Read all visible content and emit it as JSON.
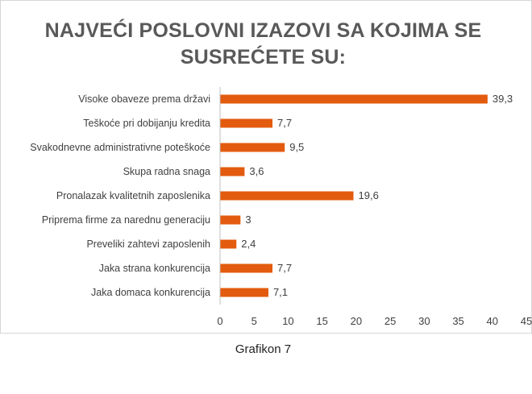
{
  "chart_data": {
    "type": "bar",
    "orientation": "horizontal",
    "title_lines": [
      "NAJVEĆI POSLOVNI IZAZOVI SA KOJIMA SE",
      "SUSREĆETE SU:"
    ],
    "categories": [
      "Visoke obaveze prema državi",
      "Teškoće pri dobijanju kredita",
      "Svakodnevne administrativne poteškoće",
      "Skupa radna snaga",
      "Pronalazak kvalitetnih zaposlenika",
      "Priprema firme za narednu generaciju",
      "Preveliki zahtevi zaposlenih",
      "Jaka strana konkurencija",
      "Jaka domaca konkurencija"
    ],
    "values": [
      39.3,
      7.7,
      9.5,
      3.6,
      19.6,
      3,
      2.4,
      7.7,
      7.1
    ],
    "value_labels": [
      "39,3",
      "7,7",
      "9,5",
      "3,6",
      "19,6",
      "3",
      "2,4",
      "7,7",
      "7,1"
    ],
    "xlim": [
      0,
      45
    ],
    "xticks": [
      0,
      5,
      10,
      15,
      20,
      25,
      30,
      35,
      40,
      45
    ],
    "bar_color": "#e35b0e",
    "grid": false,
    "legend": "none"
  },
  "caption": "Grafikon 7"
}
